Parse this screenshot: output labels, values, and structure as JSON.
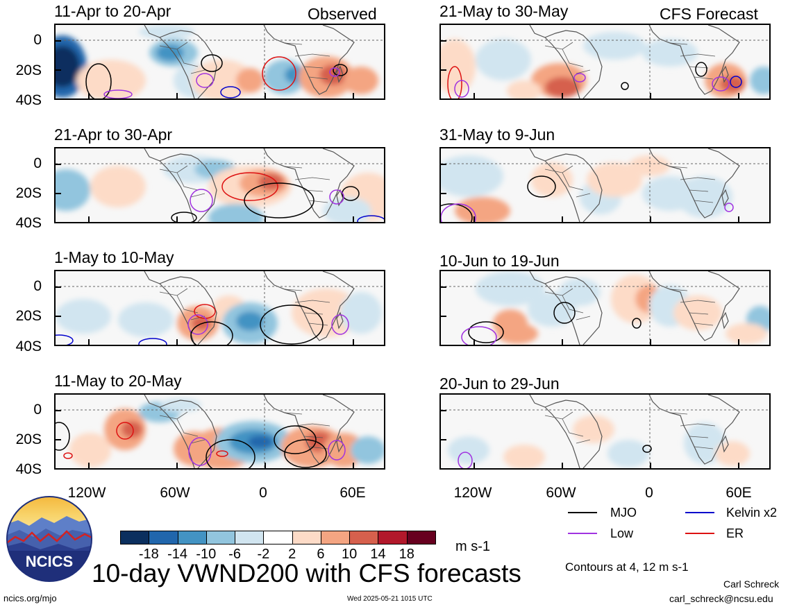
{
  "header": {
    "left_tag": "Observed",
    "right_tag": "CFS Forecast"
  },
  "panels": {
    "observed": [
      "11-Apr to 20-Apr",
      "21-Apr to 30-Apr",
      "1-May to 10-May",
      "11-May to 20-May"
    ],
    "forecast": [
      "21-May to 30-May",
      "31-May to 9-Jun",
      "10-Jun to 19-Jun",
      "20-Jun to 29-Jun"
    ]
  },
  "axes": {
    "lat_labels": [
      "0",
      "20S",
      "40S"
    ],
    "lon_labels": [
      "120W",
      "60W",
      "0",
      "60E"
    ]
  },
  "colorbar": {
    "labels": [
      "-18",
      "-14",
      "-10",
      "-6",
      "-2",
      "2",
      "6",
      "10",
      "14",
      "18"
    ],
    "unit": "m s-1",
    "colors": [
      "#0b2f5e",
      "#2166ac",
      "#4393c3",
      "#92c5de",
      "#d1e5f0",
      "#ffffff",
      "#fddbc7",
      "#f4a582",
      "#d6604d",
      "#b2182b",
      "#67001f"
    ]
  },
  "legend": {
    "items": [
      {
        "label": "MJO",
        "color": "#000000"
      },
      {
        "label": "Kelvin x2",
        "color": "#0000cc"
      },
      {
        "label": "Low",
        "color": "#a033e0"
      },
      {
        "label": "ER",
        "color": "#dd1111"
      }
    ],
    "contours_note": "Contours at 4, 12 m s-1"
  },
  "footer": {
    "logo_text": "NCICS",
    "main_title": "10-day VWND200 with CFS forecasts",
    "site": "ncics.org/mjo",
    "timestamp": "Wed 2025-05-21 1015 UTC",
    "author": "Carl Schreck",
    "email": "carl_schreck@ncsu.edu"
  }
}
